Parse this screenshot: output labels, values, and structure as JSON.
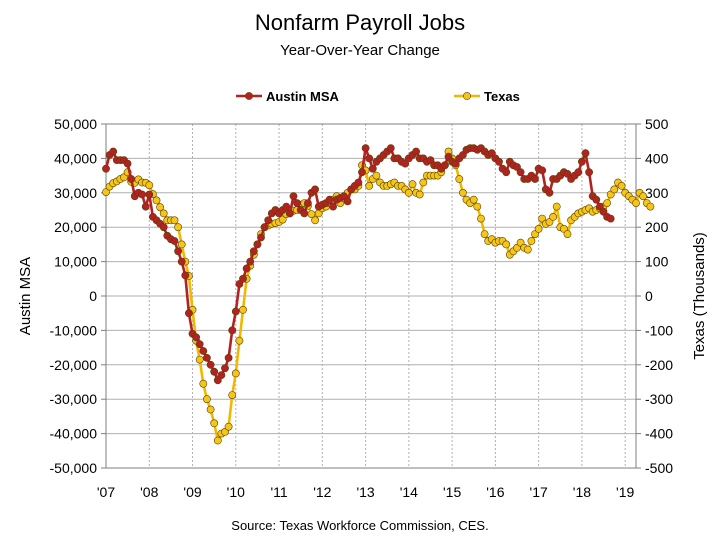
{
  "chart_data": {
    "type": "line",
    "title": "Nonfarm Payroll Jobs",
    "subtitle": "Year-Over-Year Change",
    "ylabel": "Austin MSA",
    "y2label": "Texas (Thousands)",
    "ylim": [
      -50000,
      50000
    ],
    "y2lim": [
      -500,
      500
    ],
    "yticks": [
      "50,000",
      "40,000",
      "30,000",
      "20,000",
      "10,000",
      "0",
      "-10,000",
      "-20,000",
      "-30,000",
      "-40,000",
      "-50,000"
    ],
    "y2ticks": [
      "500",
      "400",
      "300",
      "200",
      "100",
      "0",
      "-100",
      "-200",
      "-300",
      "-400",
      "-500"
    ],
    "xticks": [
      "'07",
      "'08",
      "'09",
      "'10",
      "'11",
      "'12",
      "'13",
      "'14",
      "'15",
      "'16",
      "'17",
      "'18",
      "'19"
    ],
    "xlim": [
      2007,
      2019.25
    ],
    "grid": true,
    "legend_position": "top",
    "source": "Source:  Texas Workforce Commission, CES.",
    "series": [
      {
        "name": "Austin MSA",
        "axis": "left",
        "color": "#b22222",
        "marker_fill": "#b22222",
        "x_start": 2007.0,
        "x_step": 0.08333,
        "values": [
          37000,
          41000,
          42000,
          39500,
          39500,
          39500,
          38500,
          34000,
          29000,
          30000,
          29500,
          26000,
          29500,
          23000,
          22000,
          21000,
          20000,
          17500,
          16500,
          16000,
          13000,
          10000,
          6000,
          -5000,
          -11000,
          -12000,
          -14000,
          -16000,
          -18000,
          -20000,
          -22000,
          -24500,
          -23000,
          -21000,
          -18000,
          -10000,
          -4500,
          3500,
          5000,
          8000,
          10000,
          13000,
          15000,
          17000,
          20000,
          22000,
          24000,
          25000,
          24000,
          25000,
          26000,
          24000,
          29000,
          27000,
          25000,
          24000,
          27000,
          30000,
          31000,
          26000,
          26500,
          27000,
          28000,
          26000,
          28000,
          28500,
          29000,
          27500,
          31000,
          32000,
          33000,
          36000,
          43000,
          40000,
          37000,
          39000,
          40000,
          41000,
          42000,
          43000,
          40000,
          40000,
          39000,
          38500,
          40000,
          41000,
          42000,
          40000,
          40000,
          39000,
          39500,
          38000,
          38000,
          37000,
          38000,
          40500,
          39000,
          38500,
          40000,
          41000,
          42500,
          43000,
          43000,
          42500,
          43000,
          42000,
          41000,
          41500,
          40000,
          39000,
          37000,
          36000,
          39000,
          38000,
          37500,
          36000,
          34000,
          34000,
          35000,
          34000,
          37000,
          36500,
          31000,
          30000,
          34000,
          34000,
          35000,
          36000,
          35500,
          34000,
          35000,
          36000,
          39000,
          41500,
          36000,
          29000,
          28000,
          26000,
          24500,
          23000,
          22500
        ]
      },
      {
        "name": "Texas",
        "axis": "right",
        "color": "#f2b800",
        "marker_fill": "#f5c518",
        "x_start": 2007.0,
        "x_step": 0.08333,
        "values": [
          302,
          318,
          328,
          333,
          340,
          345,
          360,
          332,
          329,
          339,
          330,
          329,
          322,
          296,
          278,
          258,
          240,
          220,
          220,
          220,
          200,
          150,
          100,
          58,
          -40,
          -130,
          -185,
          -255,
          -300,
          -330,
          -370,
          -420,
          -400,
          -395,
          -380,
          -288,
          -225,
          -130,
          -40,
          50,
          88,
          120,
          150,
          180,
          200,
          205,
          210,
          212,
          215,
          222,
          238,
          240,
          248,
          250,
          265,
          270,
          262,
          238,
          220,
          240,
          255,
          260,
          270,
          280,
          290,
          270,
          285,
          300,
          310,
          310,
          320,
          380,
          365,
          320,
          340,
          350,
          330,
          320,
          320,
          325,
          330,
          320,
          320,
          310,
          300,
          325,
          300,
          295,
          330,
          350,
          350,
          350,
          350,
          360,
          380,
          420,
          400,
          380,
          340,
          300,
          280,
          270,
          280,
          260,
          225,
          180,
          160,
          165,
          155,
          160,
          160,
          150,
          120,
          130,
          140,
          155,
          140,
          135,
          160,
          180,
          195,
          225,
          210,
          215,
          230,
          260,
          200,
          195,
          180,
          220,
          230,
          240,
          245,
          250,
          255,
          245,
          250,
          255,
          260,
          270,
          295,
          310,
          330,
          320,
          300,
          290,
          280,
          270,
          300,
          290,
          270,
          260
        ]
      }
    ]
  }
}
